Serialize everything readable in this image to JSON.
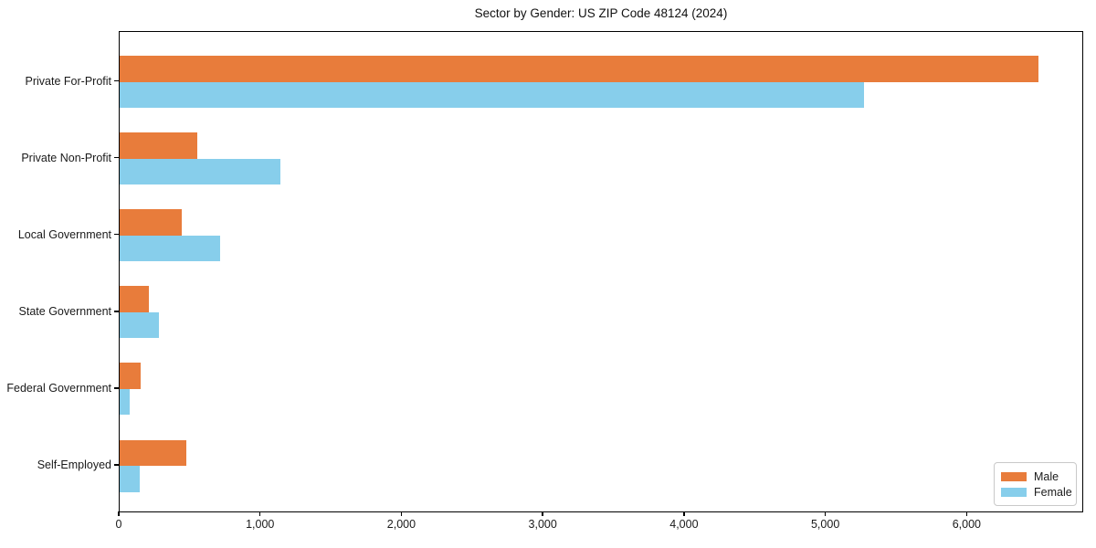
{
  "chart_data": {
    "type": "bar",
    "orientation": "horizontal",
    "title": "Sector by Gender: US ZIP Code 48124 (2024)",
    "categories": [
      "Private For-Profit",
      "Private Non-Profit",
      "Local Government",
      "State Government",
      "Federal Government",
      "Self-Employed"
    ],
    "series": [
      {
        "name": "Male",
        "color": "#E87C3B",
        "values": [
          6500,
          550,
          440,
          210,
          150,
          470
        ]
      },
      {
        "name": "Female",
        "color": "#87CEEB",
        "values": [
          5270,
          1140,
          710,
          280,
          70,
          145
        ]
      }
    ],
    "xlabel": "",
    "ylabel": "",
    "xlim": [
      0,
      6825
    ],
    "xticks": [
      0,
      1000,
      2000,
      3000,
      4000,
      5000,
      6000
    ],
    "xtick_labels": [
      "0",
      "1,000",
      "2,000",
      "3,000",
      "4,000",
      "5,000",
      "6,000"
    ],
    "grid": false,
    "legend": {
      "position": "lower-right"
    }
  }
}
